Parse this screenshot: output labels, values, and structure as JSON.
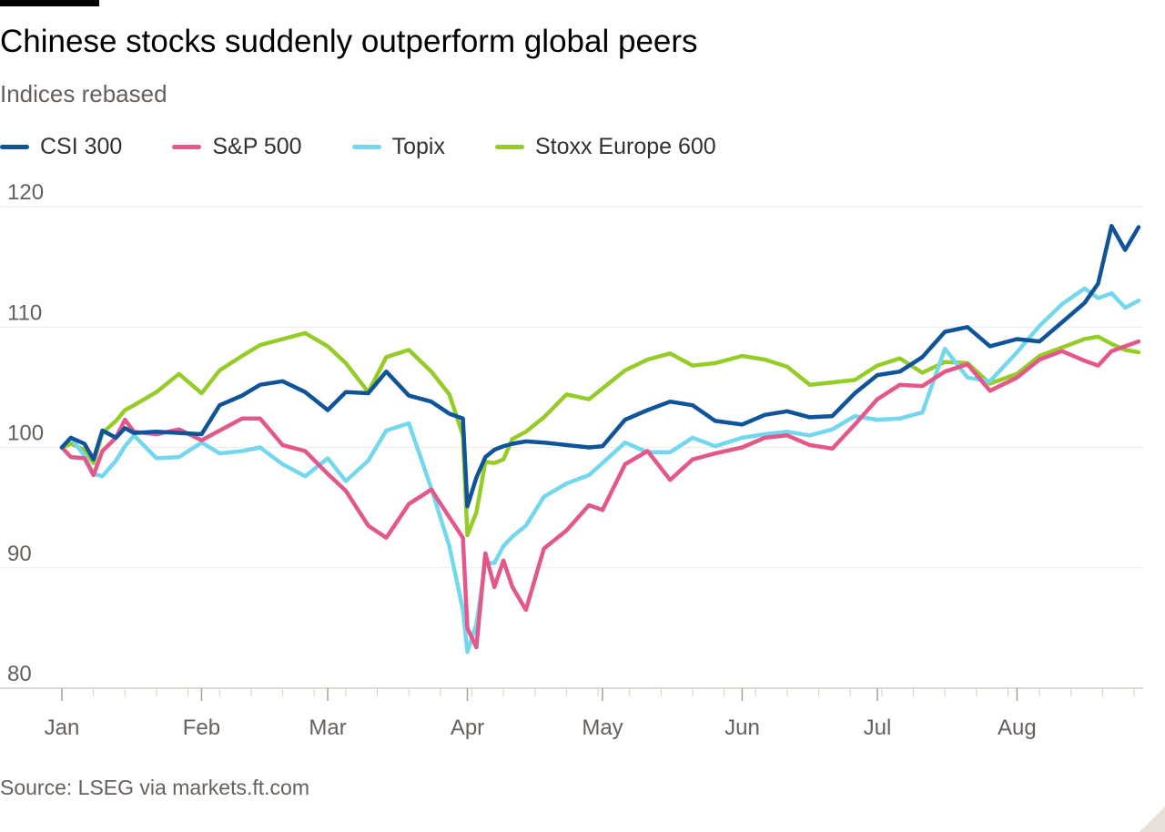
{
  "title": "Chinese stocks suddenly outperform global peers",
  "subtitle": "Indices rebased",
  "source": "Source: LSEG via markets.ft.com",
  "chart_data": {
    "type": "line",
    "x_unit": "trading week, 2025",
    "y_ticks": [
      80,
      90,
      100,
      110,
      120
    ],
    "ylim": [
      80,
      120
    ],
    "xlim": [
      "2025-01-01",
      "2025-08-29"
    ],
    "grid": true,
    "legend_position": "top-left",
    "x_ticks": [
      {
        "label": "Jan",
        "date": "2025-01-01"
      },
      {
        "label": "Feb",
        "date": "2025-02-01"
      },
      {
        "label": "Mar",
        "date": "2025-03-01"
      },
      {
        "label": "Apr",
        "date": "2025-04-01"
      },
      {
        "label": "May",
        "date": "2025-05-01"
      },
      {
        "label": "Jun",
        "date": "2025-06-01"
      },
      {
        "label": "Jul",
        "date": "2025-07-01"
      },
      {
        "label": "Aug",
        "date": "2025-08-01"
      }
    ],
    "x": [
      "2025-01-01",
      "2025-01-03",
      "2025-01-06",
      "2025-01-08",
      "2025-01-10",
      "2025-01-13",
      "2025-01-15",
      "2025-01-17",
      "2025-01-22",
      "2025-01-27",
      "2025-02-01",
      "2025-02-05",
      "2025-02-10",
      "2025-02-14",
      "2025-02-19",
      "2025-02-24",
      "2025-03-01",
      "2025-03-05",
      "2025-03-10",
      "2025-03-14",
      "2025-03-19",
      "2025-03-24",
      "2025-03-28",
      "2025-03-31",
      "2025-04-01",
      "2025-04-03",
      "2025-04-05",
      "2025-04-07",
      "2025-04-09",
      "2025-04-11",
      "2025-04-14",
      "2025-04-18",
      "2025-04-23",
      "2025-04-28",
      "2025-05-01",
      "2025-05-06",
      "2025-05-11",
      "2025-05-16",
      "2025-05-21",
      "2025-05-26",
      "2025-06-01",
      "2025-06-06",
      "2025-06-11",
      "2025-06-16",
      "2025-06-21",
      "2025-06-26",
      "2025-07-01",
      "2025-07-06",
      "2025-07-11",
      "2025-07-16",
      "2025-07-21",
      "2025-07-26",
      "2025-08-01",
      "2025-08-06",
      "2025-08-11",
      "2025-08-16",
      "2025-08-19",
      "2025-08-22",
      "2025-08-25",
      "2025-08-28"
    ],
    "series": [
      {
        "name": "CSI 300",
        "color": "#0f5499",
        "values": [
          100.0,
          100.8,
          100.3,
          99.0,
          101.4,
          100.8,
          101.6,
          101.2,
          101.3,
          101.2,
          101.1,
          103.5,
          104.3,
          105.2,
          105.5,
          104.6,
          103.1,
          104.6,
          104.5,
          106.3,
          104.3,
          103.8,
          102.8,
          102.4,
          95.1,
          97.5,
          99.2,
          99.8,
          100.1,
          100.3,
          100.5,
          100.4,
          100.2,
          100.0,
          100.1,
          102.3,
          103.1,
          103.8,
          103.5,
          102.2,
          101.9,
          102.7,
          103.0,
          102.5,
          102.6,
          104.5,
          106.0,
          106.3,
          107.5,
          109.6,
          110.0,
          108.4,
          109.0,
          108.8,
          110.4,
          112.0,
          113.6,
          118.4,
          116.4,
          118.3
        ]
      },
      {
        "name": "S&P 500",
        "color": "#e3578b",
        "values": [
          100.0,
          99.2,
          99.1,
          97.7,
          99.7,
          100.8,
          102.3,
          101.3,
          101.1,
          101.5,
          100.6,
          101.4,
          102.4,
          102.4,
          100.2,
          99.7,
          97.8,
          96.4,
          93.5,
          92.5,
          95.3,
          96.5,
          94.2,
          92.5,
          85.0,
          83.4,
          91.2,
          88.4,
          90.6,
          88.4,
          86.5,
          91.6,
          93.1,
          95.2,
          94.8,
          98.6,
          99.7,
          97.3,
          99.0,
          99.5,
          100.0,
          100.8,
          101.0,
          100.2,
          99.9,
          101.9,
          104.0,
          105.2,
          105.1,
          106.3,
          106.9,
          104.7,
          105.8,
          107.3,
          108.0,
          107.2,
          106.8,
          108.0,
          108.4,
          108.8
        ]
      },
      {
        "name": "Topix",
        "color": "#73d8ee",
        "values": [
          100.0,
          100.8,
          99.3,
          97.8,
          97.6,
          98.9,
          100.1,
          101.0,
          99.1,
          99.2,
          100.4,
          99.5,
          99.7,
          100.0,
          98.6,
          97.6,
          99.1,
          97.2,
          98.9,
          101.4,
          102.0,
          96.6,
          91.8,
          86.5,
          83.0,
          85.3,
          90.4,
          90.4,
          91.8,
          92.6,
          93.5,
          95.9,
          97.0,
          97.7,
          98.7,
          100.4,
          99.6,
          99.6,
          100.8,
          100.1,
          100.8,
          101.1,
          101.3,
          101.0,
          101.5,
          102.6,
          102.3,
          102.4,
          102.9,
          108.2,
          105.8,
          105.5,
          107.9,
          110.1,
          111.9,
          113.2,
          112.4,
          112.8,
          111.6,
          112.2
        ]
      },
      {
        "name": "Stoxx Europe 600",
        "color": "#96cc28",
        "values": [
          100.0,
          100.3,
          99.8,
          98.7,
          101.2,
          102.2,
          103.1,
          103.5,
          104.6,
          106.1,
          104.5,
          106.4,
          107.6,
          108.5,
          109.0,
          109.5,
          108.4,
          107.0,
          104.6,
          107.5,
          108.1,
          106.3,
          104.4,
          101.0,
          92.7,
          94.6,
          98.8,
          98.7,
          99.0,
          100.7,
          101.3,
          102.5,
          104.4,
          104.0,
          104.9,
          106.4,
          107.3,
          107.8,
          106.8,
          107.0,
          107.6,
          107.3,
          106.7,
          105.2,
          105.4,
          105.6,
          106.8,
          107.4,
          106.2,
          107.1,
          107.0,
          105.3,
          106.1,
          107.6,
          108.3,
          109.0,
          109.2,
          108.6,
          108.1,
          107.9
        ]
      }
    ]
  }
}
